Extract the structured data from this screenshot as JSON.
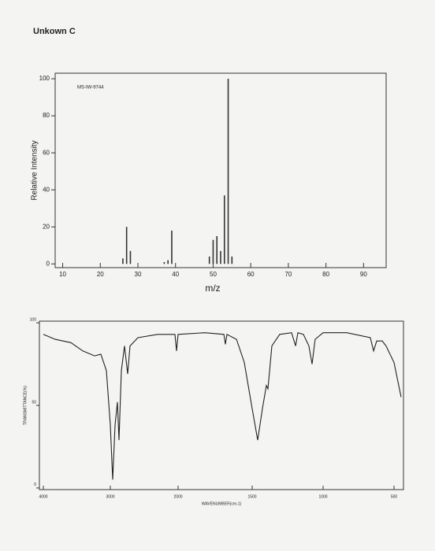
{
  "title": "Unkown C",
  "chart_data": [
    {
      "type": "bar",
      "annotation": "MS-IW-9744",
      "ylabel": "Relative Intensity",
      "xlabel": "m/z",
      "x": [
        26,
        27,
        28,
        37,
        38,
        39,
        49,
        50,
        51,
        52,
        53,
        54,
        55
      ],
      "values": [
        3,
        20,
        7,
        1,
        2,
        18,
        4,
        13,
        15,
        7,
        37,
        100,
        4
      ],
      "color": "#333333",
      "xlim": [
        8,
        96
      ],
      "xticks": [
        10,
        20,
        30,
        40,
        50,
        60,
        70,
        80,
        90
      ],
      "ylim": [
        -2,
        103
      ],
      "yticks": [
        0,
        20,
        40,
        60,
        80,
        100
      ]
    },
    {
      "type": "line",
      "ylabel": "TRANSMITTANCE(%)",
      "xlabel": "WAVENUMBER(cm-1)",
      "x": [
        4000,
        3824,
        3588,
        3412,
        3235,
        3141,
        3059,
        3000,
        2965,
        2930,
        2895,
        2872,
        2837,
        2791,
        2744,
        2709,
        2593,
        2302,
        2047,
        2023,
        2000,
        1819,
        1691,
        1681,
        1670,
        1606,
        1553,
        1500,
        1461,
        1428,
        1400,
        1389,
        1361,
        1306,
        1222,
        1194,
        1178,
        1139,
        1100,
        1078,
        1056,
        1000,
        833,
        667,
        644,
        622,
        583,
        556,
        500,
        450
      ],
      "series": [
        {
          "name": "Unkown C",
          "color": "#222222",
          "values": [
            93,
            90,
            88,
            83,
            80,
            81,
            71,
            38,
            5,
            38,
            52,
            29,
            71,
            86,
            69,
            86,
            91,
            93,
            93,
            83,
            93,
            94,
            93,
            87,
            93,
            90,
            76,
            48,
            29,
            48,
            62,
            60,
            86,
            93,
            94,
            86,
            94,
            93,
            86,
            75,
            90,
            94,
            94,
            91,
            83,
            89,
            89,
            86,
            76,
            55
          ]
        }
      ],
      "xlim": [
        4000,
        450
      ],
      "xticks": [
        4000,
        3000,
        2000,
        1500,
        1000,
        500
      ],
      "ylim": [
        -1,
        101
      ],
      "yticks": [
        0,
        50,
        100
      ]
    }
  ]
}
